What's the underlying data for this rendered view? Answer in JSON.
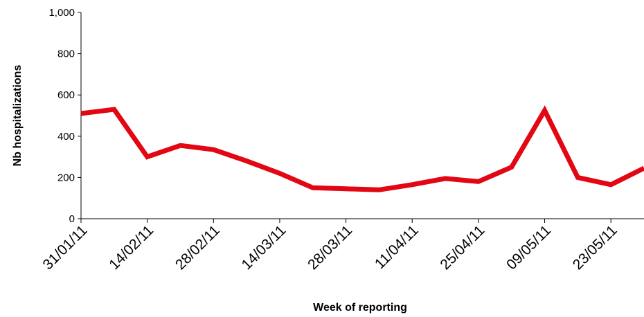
{
  "chart_data": {
    "type": "line",
    "x_label": "Week of reporting",
    "y_label": "Nb hospitalizations",
    "categories": [
      "31/01/11",
      null,
      "14/02/11",
      null,
      "28/02/11",
      null,
      "14/03/11",
      null,
      "28/03/11",
      null,
      "11/04/11",
      null,
      "25/04/11",
      null,
      "09/05/11",
      null,
      "23/05/11",
      null
    ],
    "series": [
      {
        "name": "Nb hospitalizations",
        "color": "#e30613",
        "values": [
          510,
          530,
          300,
          355,
          335,
          280,
          220,
          150,
          145,
          140,
          165,
          195,
          180,
          250,
          525,
          200,
          165,
          245
        ]
      }
    ],
    "ylim": [
      0,
      1000
    ],
    "yticks": [
      0,
      200,
      400,
      600,
      800,
      {
        "value": 1000,
        "label": "1,000"
      }
    ],
    "grid": false
  }
}
